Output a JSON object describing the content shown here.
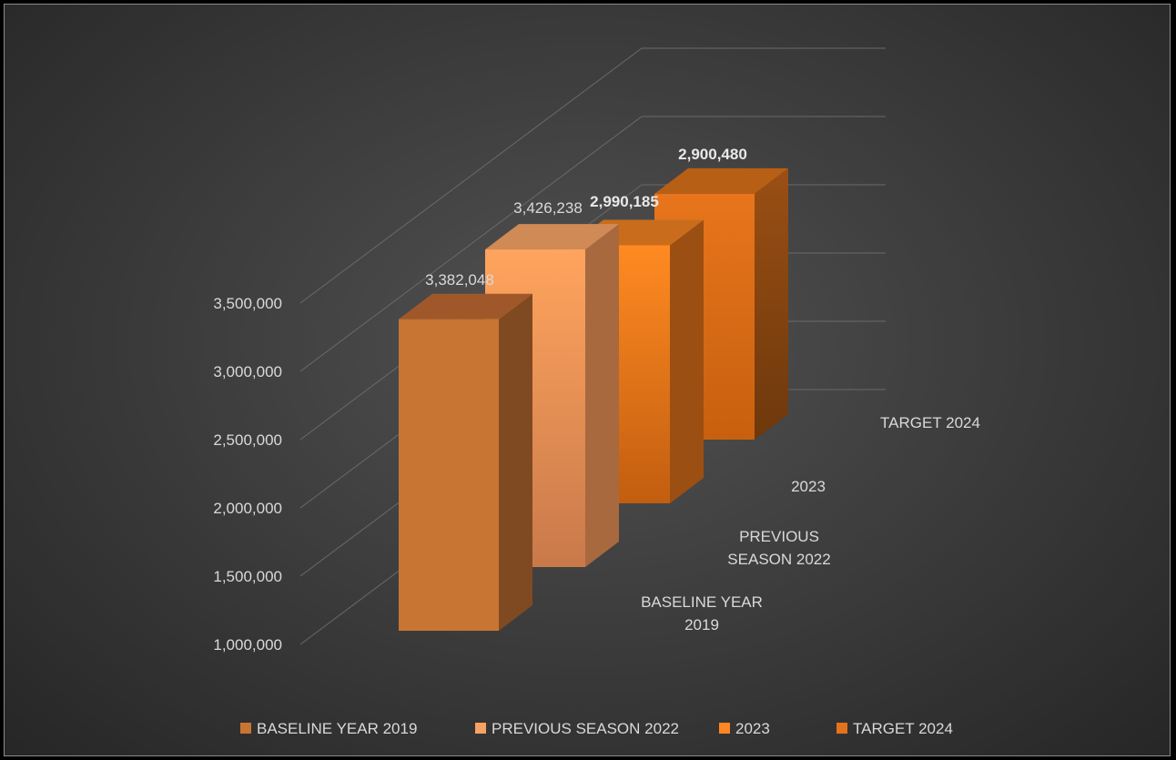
{
  "chart_data": {
    "type": "bar",
    "categories": [
      "BASELINE YEAR 2019",
      "PREVIOUS SEASON 2022",
      "2023",
      "TARGET 2024"
    ],
    "category_labels": [
      [
        "BASELINE YEAR",
        "2019"
      ],
      [
        "PREVIOUS",
        "SEASON 2022"
      ],
      [
        "2023"
      ],
      [
        "TARGET 2024"
      ]
    ],
    "values": [
      3382048,
      3426238,
      2990185,
      2900480
    ],
    "data_labels": [
      "3,382,048",
      "3,426,238",
      "2,990,185",
      "2,900,480"
    ],
    "data_label_bold": [
      false,
      false,
      true,
      true
    ],
    "ylim": [
      1000000,
      3500000
    ],
    "yticks": [
      "1,000,000",
      "1,500,000",
      "2,000,000",
      "2,500,000",
      "3,000,000",
      "3,500,000"
    ],
    "title": "",
    "xlabel": "",
    "ylabel": "",
    "grid": true,
    "legend_position": "bottom",
    "colors": [
      "#c87533",
      "#f6a263",
      "#ff8624",
      "#e3731d"
    ],
    "legend": [
      "BASELINE YEAR 2019",
      "PREVIOUS SEASON 2022",
      "2023",
      "TARGET 2024"
    ]
  }
}
